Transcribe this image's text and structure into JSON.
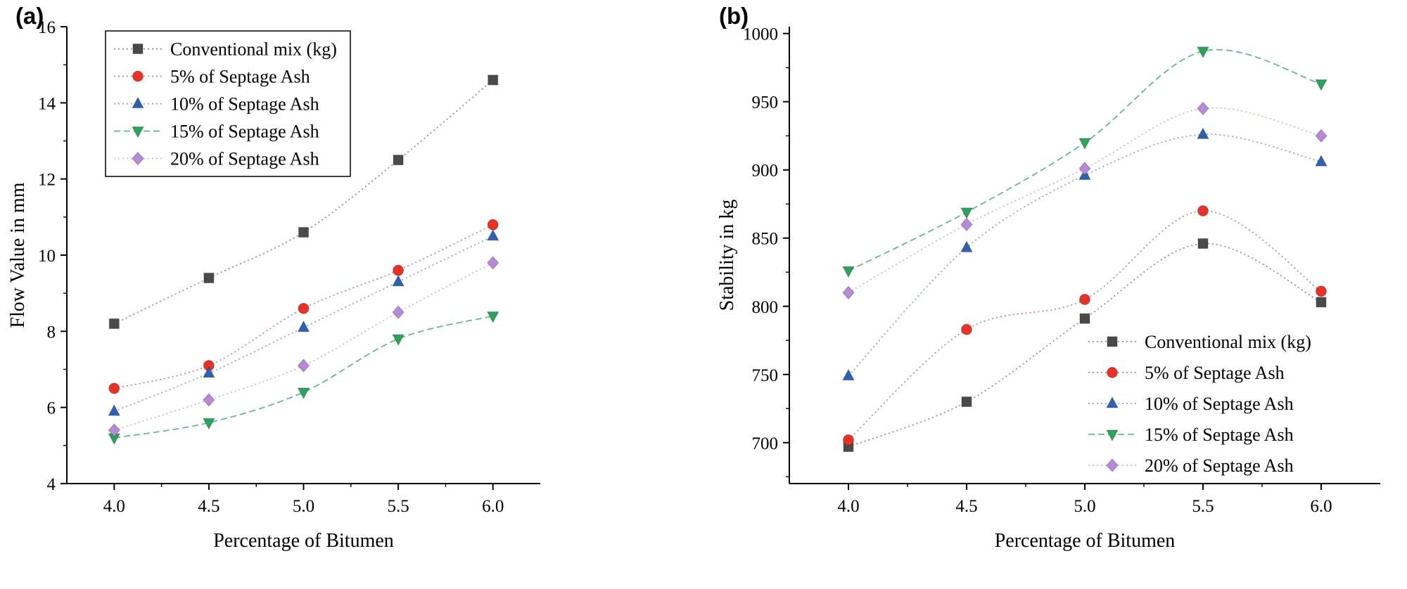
{
  "figure": {
    "background": "#ffffff",
    "axis_color": "#000000"
  },
  "chart_data": [
    {
      "type": "line",
      "tag": "(a)",
      "xlabel": "Percentage of Bitumen",
      "ylabel": "Flow Value in mm",
      "x": [
        4.0,
        4.5,
        5.0,
        5.5,
        6.0
      ],
      "x_tick_labels": [
        "4.0",
        "4.5",
        "5.0",
        "5.5",
        "6.0"
      ],
      "xticks": [
        4.0,
        4.5,
        5.0,
        5.5,
        6.0
      ],
      "xlim": [
        3.75,
        6.25
      ],
      "ylim": [
        4,
        16
      ],
      "yticks": [
        4,
        6,
        8,
        10,
        12,
        14,
        16
      ],
      "grid": false,
      "legend": {
        "position": "top-left",
        "border": true
      },
      "series": [
        {
          "name": "Conventional mix (kg)",
          "marker": "square",
          "color": "#4a4a4a",
          "line_color": "#909090",
          "dash": "2 4",
          "values": [
            8.2,
            9.4,
            10.6,
            12.5,
            14.6
          ]
        },
        {
          "name": "5% of Septage Ash",
          "marker": "circle",
          "color": "#e63329",
          "line_color": "#c9897f",
          "dash": "2 4",
          "values": [
            6.5,
            7.1,
            8.6,
            9.6,
            10.8
          ]
        },
        {
          "name": "10% of Septage Ash",
          "marker": "triangle-up",
          "color": "#3061ae",
          "line_color": "#8aa6cf",
          "dash": "2 4",
          "values": [
            5.9,
            6.9,
            8.1,
            9.3,
            10.5
          ]
        },
        {
          "name": "15% of Septage Ash",
          "marker": "triangle-down",
          "color": "#2fa05e",
          "line_color": "#67b88e",
          "dash": "9 5",
          "values": [
            5.2,
            5.6,
            6.4,
            7.8,
            8.4
          ]
        },
        {
          "name": "20% of Septage Ash",
          "marker": "diamond",
          "color": "#b78ad9",
          "line_color": "#cfb2e4",
          "dash": "2 4",
          "values": [
            5.4,
            6.2,
            7.1,
            8.5,
            9.8
          ]
        }
      ]
    },
    {
      "type": "line",
      "tag": "(b)",
      "xlabel": "Percentage of Bitumen",
      "ylabel": "Stability in kg",
      "x": [
        4.0,
        4.5,
        5.0,
        5.5,
        6.0
      ],
      "x_tick_labels": [
        "4.0",
        "4.5",
        "5.0",
        "5.5",
        "6.0"
      ],
      "xticks": [
        4.0,
        4.5,
        5.0,
        5.5,
        6.0
      ],
      "xlim": [
        3.75,
        6.25
      ],
      "ylim": [
        670,
        1005
      ],
      "yticks": [
        700,
        750,
        800,
        850,
        900,
        950,
        1000
      ],
      "grid": false,
      "legend": {
        "position": "bottom-right",
        "border": false
      },
      "series": [
        {
          "name": "Conventional mix (kg)",
          "marker": "square",
          "color": "#4a4a4a",
          "line_color": "#909090",
          "dash": "2 4",
          "values": [
            697,
            730,
            791,
            846,
            803
          ]
        },
        {
          "name": "5% of Septage Ash",
          "marker": "circle",
          "color": "#e63329",
          "line_color": "#c9897f",
          "dash": "2 4",
          "values": [
            702,
            783,
            805,
            870,
            811
          ]
        },
        {
          "name": "10% of Septage Ash",
          "marker": "triangle-up",
          "color": "#3061ae",
          "line_color": "#8aa6cf",
          "dash": "2 4",
          "values": [
            749,
            843,
            896,
            926,
            906
          ]
        },
        {
          "name": "15% of Septage Ash",
          "marker": "triangle-down",
          "color": "#2fa05e",
          "line_color": "#67b88e",
          "dash": "9 5",
          "values": [
            826,
            869,
            920,
            987,
            963
          ]
        },
        {
          "name": "20% of Septage Ash",
          "marker": "diamond",
          "color": "#b78ad9",
          "line_color": "#cfb2e4",
          "dash": "2 4",
          "values": [
            810,
            860,
            901,
            945,
            925
          ]
        }
      ]
    }
  ]
}
